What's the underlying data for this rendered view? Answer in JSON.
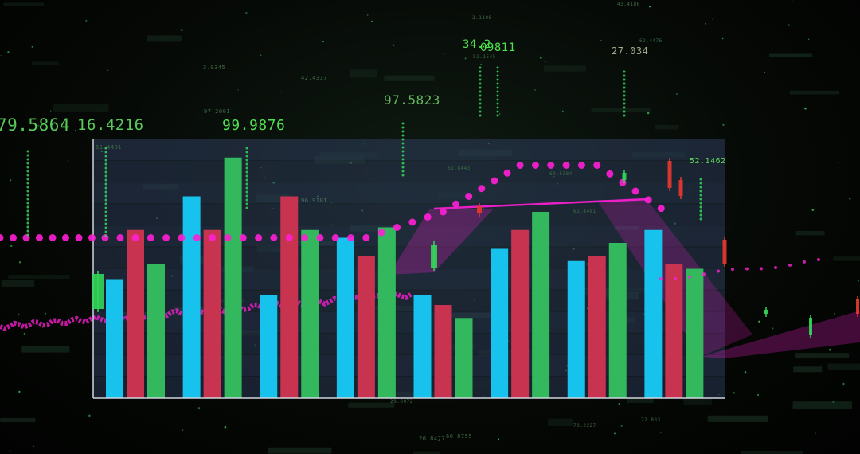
{
  "floating_labels": [
    "79.5864",
    "16.4216",
    "99.9876",
    "97.5823",
    "34.2",
    "09811",
    "27.034",
    "52.1462"
  ],
  "faint_labels": [
    "3.9345",
    "42.4337",
    "97.2001",
    "61.4481",
    "96.9181",
    "61.8443",
    "60.5384",
    "61.4481",
    "2.1108",
    "62.4476",
    "52.1545",
    "29.0072",
    "20.8477",
    "60.8755",
    "70.2227",
    "72.833",
    "43.4186"
  ],
  "chart_data": {
    "type": "bar",
    "title": "",
    "xlabel": "",
    "ylabel": "",
    "ylim": [
      0,
      100
    ],
    "grid": true,
    "legend": "none",
    "categories": [
      "",
      "",
      "",
      "",
      "",
      "",
      "",
      ""
    ],
    "series": [
      {
        "color": "#17c3ec",
        "values": [
          46,
          78,
          40,
          62,
          40,
          58,
          53,
          65
        ]
      },
      {
        "color": "#c8334f",
        "values": [
          65,
          65,
          78,
          55,
          36,
          65,
          55,
          52
        ]
      },
      {
        "color": "#33b85e",
        "values": [
          52,
          93,
          65,
          66,
          31,
          72,
          60,
          50
        ]
      }
    ],
    "overlay_dotted_line": [
      62,
      62,
      62,
      62,
      72,
      90,
      90,
      70
    ],
    "colors": {
      "accent_magenta": "#ff1fd6",
      "candle_green": "#33d65a",
      "candle_red": "#e33a2f",
      "text_green": "#5fd35a"
    }
  }
}
